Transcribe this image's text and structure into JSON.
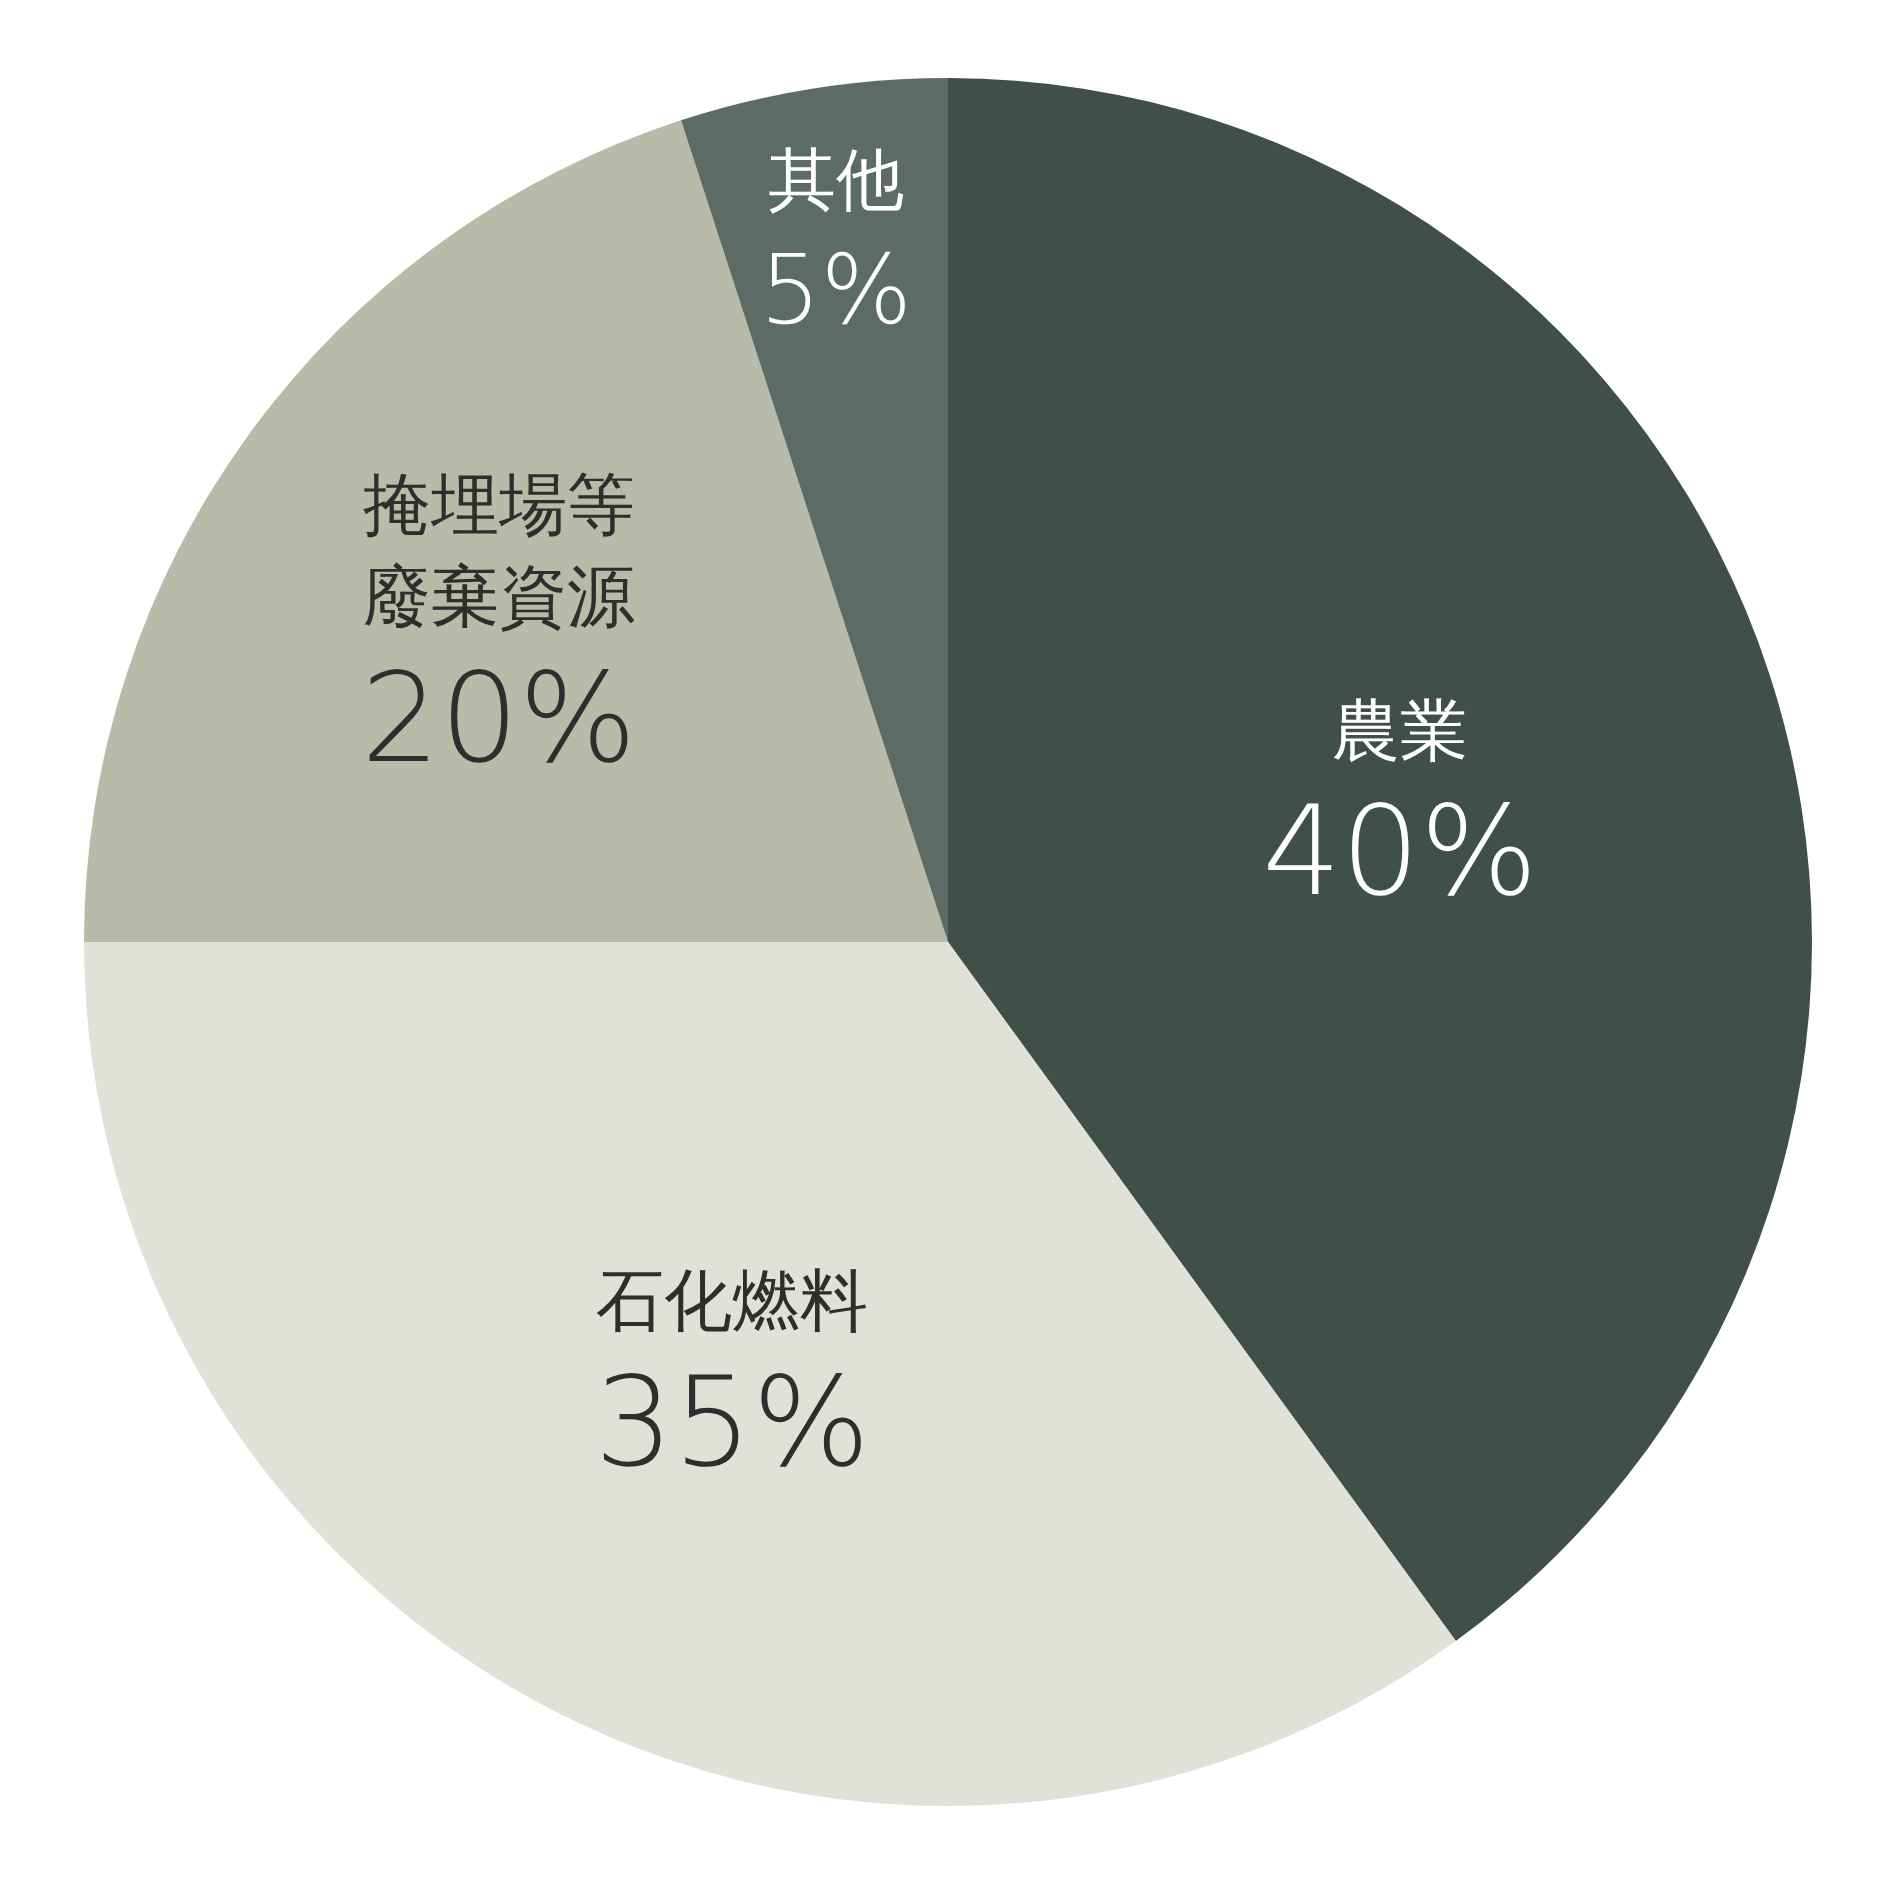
{
  "chart_data": {
    "type": "pie",
    "categories": [
      "農業",
      "石化燃料",
      "掩埋場等廢棄資源",
      "其他"
    ],
    "values": [
      40,
      35,
      20,
      5
    ],
    "value_labels": [
      "40%",
      "35%",
      "20%",
      "5%"
    ],
    "colors": [
      "#414f4b",
      "#e0e2da",
      "#b7bba8",
      "#5d6b66"
    ]
  }
}
